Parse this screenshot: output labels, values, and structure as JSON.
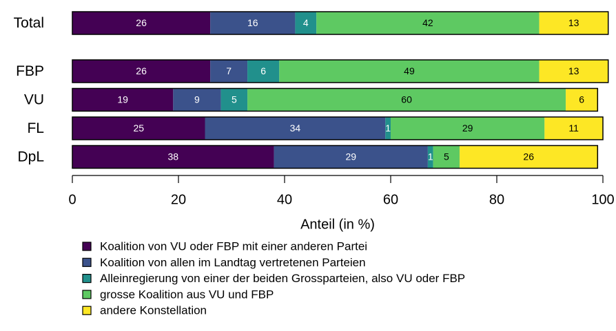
{
  "chart_data": {
    "type": "stacked-bar-horizontal",
    "categories": [
      "Total",
      "FBP",
      "VU",
      "FL",
      "DpL"
    ],
    "series": [
      {
        "name": "Koalition von VU oder FBP mit einer anderen Partei",
        "color": "#440154",
        "values": [
          26,
          26,
          19,
          25,
          38
        ]
      },
      {
        "name": "Koalition von allen im Landtag vertretenen Parteien",
        "color": "#3b528b",
        "values": [
          16,
          7,
          9,
          34,
          29
        ]
      },
      {
        "name": "Alleinregierung von einer der beiden Grossparteien, also VU oder FBP",
        "color": "#21908c",
        "values": [
          4,
          6,
          5,
          1,
          1
        ]
      },
      {
        "name": "grosse Koalition aus VU und FBP",
        "color": "#5ec962",
        "values": [
          42,
          49,
          60,
          29,
          5
        ]
      },
      {
        "name": "andere Konstellation",
        "color": "#fde725",
        "values": [
          13,
          13,
          6,
          11,
          26
        ]
      }
    ],
    "xlabel": "Anteil (in %)",
    "xlim": [
      0,
      100
    ],
    "xticks": [
      0,
      20,
      40,
      60,
      80,
      100
    ],
    "legend": "bottom"
  }
}
